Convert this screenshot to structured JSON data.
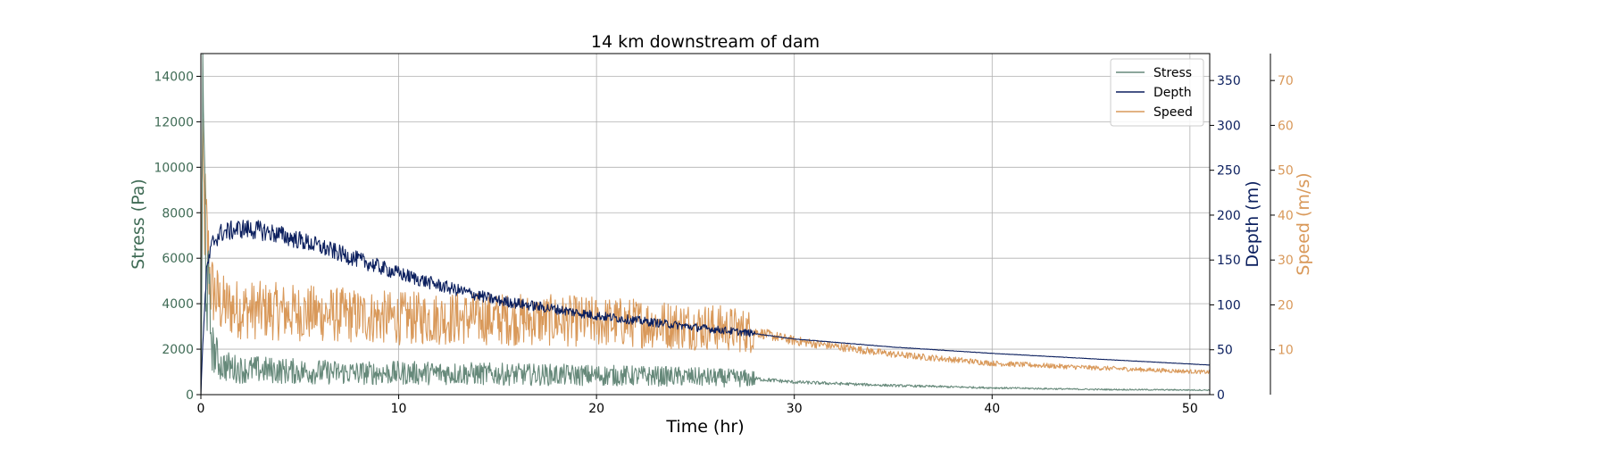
{
  "chart_data": {
    "type": "line",
    "title": "14 km downstream of dam",
    "xlabel": "Time (hr)",
    "xlim": [
      0,
      51
    ],
    "x_ticks": [
      0,
      10,
      20,
      30,
      40,
      50
    ],
    "grid": true,
    "legend_position": "top-right",
    "axes": {
      "stress": {
        "label": "Stress (Pa)",
        "ylim": [
          0,
          15000
        ],
        "ticks": [
          0,
          2000,
          4000,
          6000,
          8000,
          10000,
          12000,
          14000
        ],
        "color": "#66897a",
        "side": "left"
      },
      "depth": {
        "label": "Depth (m)",
        "ylim": [
          0,
          380
        ],
        "ticks": [
          0,
          50,
          100,
          150,
          200,
          250,
          300,
          350
        ],
        "color": "#0b1f5e",
        "side": "right"
      },
      "speed": {
        "label": "Speed (m/s)",
        "ylim": [
          0,
          76
        ],
        "ticks": [
          10,
          20,
          30,
          40,
          50,
          60,
          70
        ],
        "color": "#d9995a",
        "side": "right-offset"
      }
    },
    "series": [
      {
        "name": "Stress",
        "axis": "stress",
        "color": "#66897a",
        "noise": 0.55,
        "x": [
          0,
          0.1,
          0.3,
          0.6,
          1,
          2,
          3,
          4,
          6,
          8,
          10,
          12,
          15,
          20,
          24,
          28,
          30,
          35,
          40,
          45,
          51
        ],
        "y": [
          0,
          11600,
          5000,
          2000,
          1300,
          1100,
          1100,
          1050,
          1000,
          950,
          950,
          950,
          900,
          850,
          800,
          700,
          550,
          400,
          300,
          230,
          200
        ]
      },
      {
        "name": "Depth",
        "axis": "depth",
        "color": "#0b1f5e",
        "noise": 0.06,
        "x": [
          0,
          0.1,
          0.3,
          0.6,
          1,
          2,
          3,
          4,
          5,
          6,
          8,
          10,
          12,
          15,
          18,
          20,
          25,
          28,
          30,
          35,
          40,
          45,
          51
        ],
        "y": [
          0,
          60,
          140,
          170,
          180,
          185,
          183,
          178,
          172,
          165,
          150,
          135,
          122,
          105,
          95,
          88,
          75,
          68,
          62,
          53,
          46,
          40,
          33
        ]
      },
      {
        "name": "Speed",
        "axis": "speed",
        "color": "#d9995a",
        "noise": 0.35,
        "x": [
          0,
          0.05,
          0.2,
          0.5,
          1,
          2,
          4,
          6,
          8,
          10,
          14,
          18,
          22,
          26,
          28,
          30,
          35,
          40,
          45,
          51
        ],
        "y": [
          0,
          48,
          40,
          24,
          20,
          19,
          18.5,
          18,
          17.5,
          17,
          17,
          16.5,
          16,
          15,
          14,
          12,
          9,
          7,
          6,
          5
        ]
      }
    ]
  }
}
